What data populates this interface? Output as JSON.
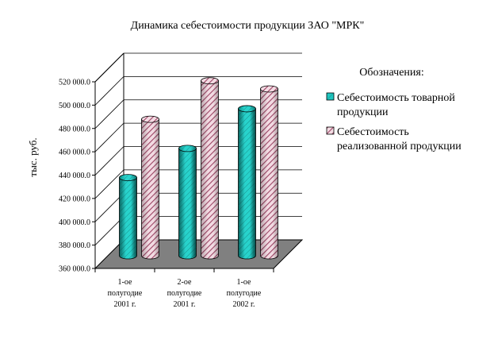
{
  "chart_data": {
    "type": "bar",
    "title": "Динамика себестоимости продукции ЗАО \"МРК\"",
    "xlabel": "",
    "ylabel": "тыс. руб.",
    "ylim": [
      360000,
      520000
    ],
    "yticks": [
      "360 000.0",
      "380 000.0",
      "400 000.0",
      "420 000.0",
      "440 000.0",
      "460 000.0",
      "480 000.0",
      "500 000.0",
      "520 000.0"
    ],
    "categories": [
      [
        "1-ое",
        "полугодие",
        "2001 г."
      ],
      [
        "2-ое",
        "полугодие",
        "2001 г."
      ],
      [
        "1-ое",
        "полугодие",
        "2002 г."
      ]
    ],
    "series": [
      {
        "name": "Себестоимость товарной продукции",
        "label_lines": [
          "Себестоимость товарной",
          "продукции"
        ],
        "values": [
          427000,
          452000,
          486000
        ]
      },
      {
        "name": "Себестоимость реализованной продукции",
        "label_lines": [
          "Себестоимость",
          "реализованной продукции"
        ],
        "values": [
          477000,
          510000,
          503000
        ]
      }
    ],
    "legend_title": "Обозначения:",
    "legend_position": "right",
    "grid": true,
    "style": "3d-cylinder",
    "colors": {
      "series1": "#1fc6c0",
      "series1_dark": "#0a7f7a",
      "series2_stripe": "#9b4464",
      "series2_bg": "#f3dbe3",
      "floor": "#808080"
    }
  }
}
